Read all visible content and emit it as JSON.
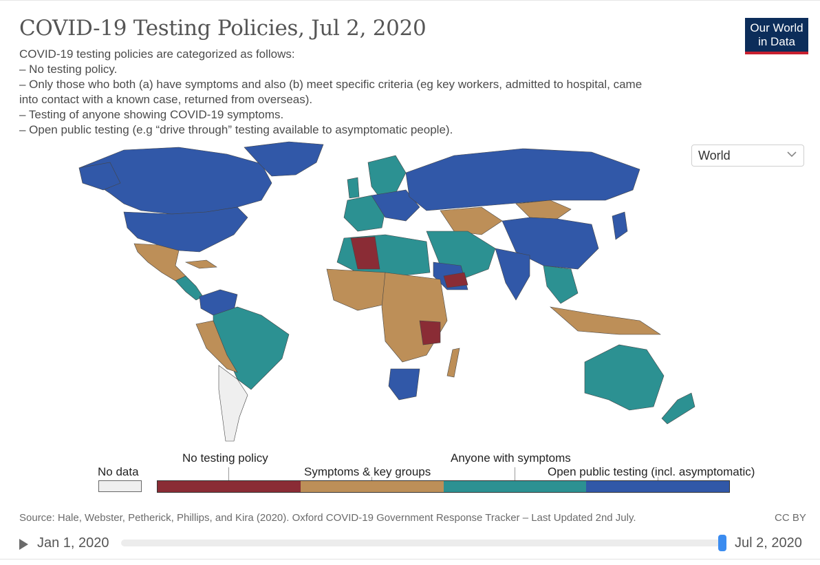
{
  "header": {
    "title": "COVID-19 Testing Policies, Jul 2, 2020",
    "subtitle_lines": [
      "COVID-19 testing policies are categorized as follows:",
      "– No testing policy.",
      "– Only those who both (a) have symptoms and also (b) meet specific criteria (eg key workers, admitted to hospital, came",
      "into contact with a known case, returned from overseas).",
      "– Testing of anyone showing COVID-19 symptoms.",
      "– Open public testing (e.g “drive through” testing available to asymptomatic people)."
    ],
    "logo_line1": "Our World",
    "logo_line2": "in Data"
  },
  "controls": {
    "region": "World"
  },
  "colors": {
    "no_data": "#efefef",
    "no_testing": "#8a2c35",
    "symptoms_key_groups": "#bd8f58",
    "anyone_with_symptoms": "#2c9192",
    "open_public": "#3158a8",
    "ocean": "#ffffff",
    "border": "#444444"
  },
  "legend": {
    "no_data": "No data",
    "categories": [
      "No testing policy",
      "Symptoms & key groups",
      "Anyone with symptoms",
      "Open public testing (incl. asymptomatic)"
    ]
  },
  "footer": {
    "source": "Source: Hale, Webster, Petherick, Phillips, and Kira (2020). Oxford COVID-19 Government Response Tracker – Last Updated 2nd July.",
    "license": "CC BY"
  },
  "timeline": {
    "start": "Jan 1, 2020",
    "end": "Jul 2, 2020",
    "position": 1.0
  }
}
